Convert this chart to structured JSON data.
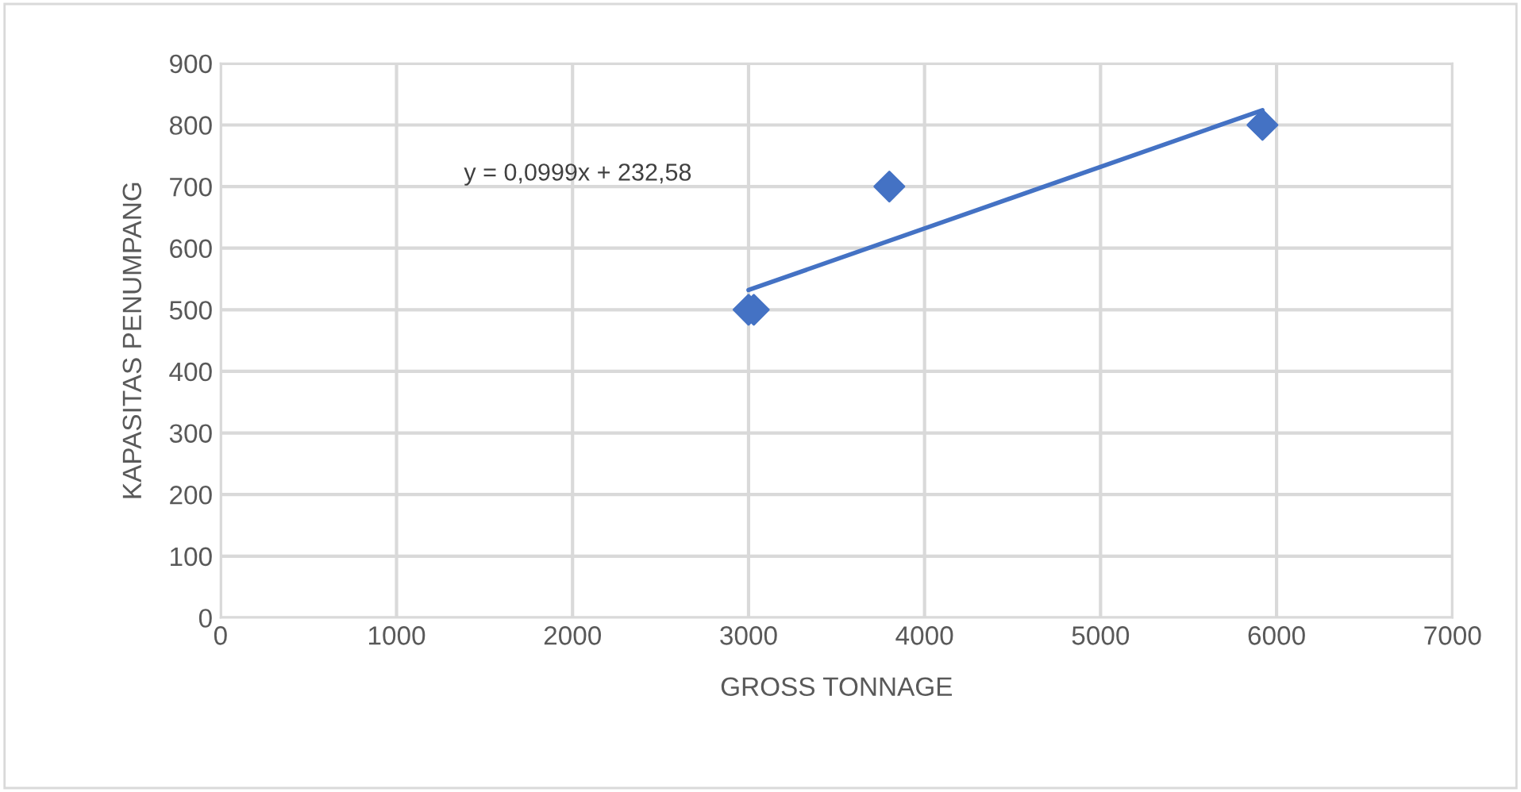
{
  "chart_data": {
    "type": "scatter",
    "xlabel": "GROSS TONNAGE",
    "ylabel": "KAPASITAS PENUMPANG",
    "series": [
      {
        "color": "#4472c4",
        "marker": "diamond",
        "x": [
          3000,
          3030,
          3800,
          5920
        ],
        "values": [
          500,
          500,
          700,
          800
        ]
      },
      {
        "type": "line",
        "color": "#4472c4",
        "marker": "none",
        "line_style": "solid",
        "x": [
          3000,
          5920
        ],
        "values": [
          532,
          824
        ]
      }
    ],
    "annotations": [
      "y = 0,0999x + 232,58"
    ],
    "xlim": [
      0,
      7000
    ],
    "xticks": [
      0,
      1000,
      2000,
      3000,
      4000,
      5000,
      6000,
      7000
    ],
    "ylim": [
      0,
      900
    ],
    "yticks": [
      0,
      100,
      200,
      300,
      400,
      500,
      600,
      700,
      800,
      900
    ],
    "grid": true,
    "legend": false
  }
}
